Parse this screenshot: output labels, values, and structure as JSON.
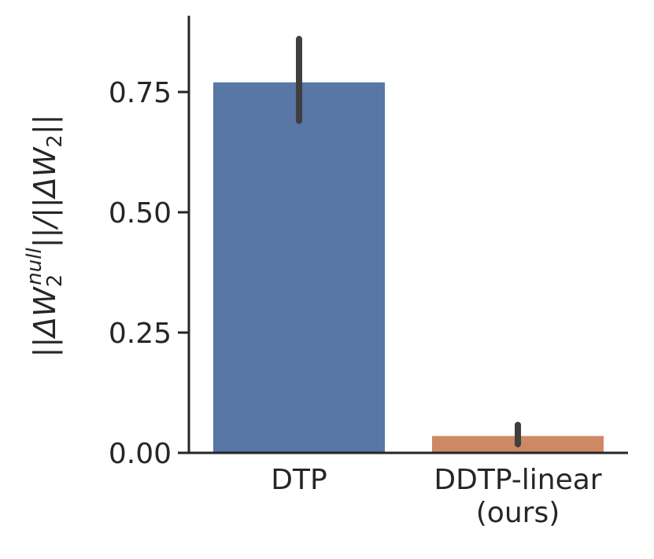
{
  "chart_data": {
    "type": "bar",
    "categories": [
      "DTP",
      "DDTP-linear\n(ours)"
    ],
    "values": [
      0.77,
      0.035
    ],
    "error_bars": [
      [
        0.69,
        0.86
      ],
      [
        0.018,
        0.058
      ]
    ],
    "colors": [
      "#5876a6",
      "#cc8963"
    ],
    "ylabel": "||ΔW2null||/||ΔW2||",
    "ylabel_parts": {
      "open": "||ΔW",
      "sub": "2",
      "sup": "null",
      "middle": "||/||ΔW",
      "sub2": "2",
      "close": "||"
    },
    "yticks": [
      0.0,
      0.25,
      0.5,
      0.75
    ],
    "ytick_labels": [
      "0.00",
      "0.25",
      "0.50",
      "0.75"
    ],
    "ylim": [
      0,
      0.9
    ],
    "grid": false
  }
}
